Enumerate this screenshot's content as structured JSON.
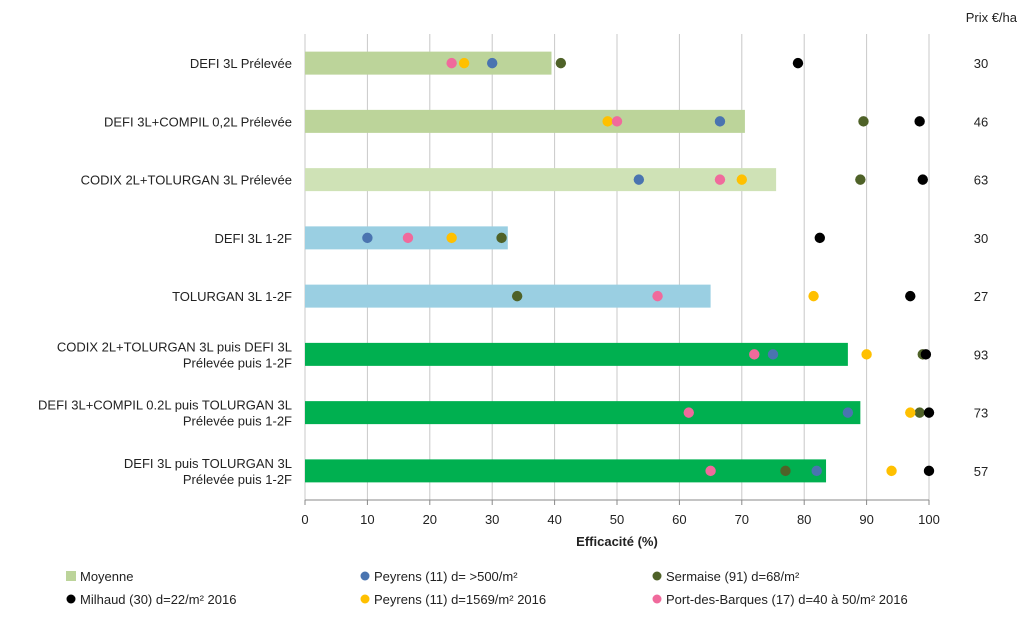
{
  "chart_data": {
    "type": "bar",
    "orientation": "horizontal",
    "xlabel": "Efficacité (%)",
    "xlim": [
      0,
      100
    ],
    "xticks": [
      0,
      10,
      20,
      30,
      40,
      50,
      60,
      70,
      80,
      90,
      100
    ],
    "grid": "vertical",
    "price_header": "Prix €/ha",
    "legend_position": "bottom",
    "categories": [
      {
        "lines": [
          "DEFI 3L   Prélevée"
        ],
        "mean": 39.5,
        "color": "#bcd49a",
        "price": "30",
        "peyrens": 30,
        "sermaise": 41,
        "milhaud": 79,
        "peyrens2016": 25.5,
        "barques": 23.5
      },
      {
        "lines": [
          "DEFI 3L+COMPIL 0,2L   Prélevée"
        ],
        "mean": 70.5,
        "color": "#bcd49a",
        "price": "46",
        "peyrens": 66.5,
        "sermaise": 89.5,
        "milhaud": 98.5,
        "peyrens2016": 48.5,
        "barques": 50
      },
      {
        "lines": [
          "CODIX 2L+TOLURGAN 3L   Prélevée"
        ],
        "mean": 75.5,
        "color": "#cfe2b6",
        "price": "63",
        "peyrens": 53.5,
        "sermaise": 89,
        "milhaud": 99,
        "peyrens2016": 70,
        "barques": 66.5
      },
      {
        "lines": [
          "DEFI 3L   1-2F"
        ],
        "mean": 32.5,
        "color": "#9acfe2",
        "price": "30",
        "peyrens": 10,
        "sermaise": 31.5,
        "milhaud": 82.5,
        "peyrens2016": 23.5,
        "barques": 16.5
      },
      {
        "lines": [
          "TOLURGAN 3L   1-2F"
        ],
        "mean": 65,
        "color": "#9acfe2",
        "price": "27",
        "peyrens": null,
        "sermaise": 34,
        "milhaud": 97,
        "peyrens2016": 81.5,
        "barques": 56.5
      },
      {
        "lines": [
          "CODIX 2L+TOLURGAN 3L puis DEFI 3L",
          "Prélevée puis 1-2F"
        ],
        "mean": 87,
        "color": "#00b050",
        "price": "93",
        "peyrens": 75,
        "sermaise": 99,
        "milhaud": 99.5,
        "peyrens2016": 90,
        "barques": 72
      },
      {
        "lines": [
          "DEFI 3L+COMPIL 0.2L puis TOLURGAN 3L",
          "Prélevée puis 1-2F"
        ],
        "mean": 89,
        "color": "#00b050",
        "price": "73",
        "peyrens": 87,
        "sermaise": 98.5,
        "milhaud": 100,
        "peyrens2016": 97,
        "barques": 61.5
      },
      {
        "lines": [
          "DEFI 3L puis TOLURGAN 3L",
          "Prélevée puis 1-2F"
        ],
        "mean": 83.5,
        "color": "#00b050",
        "price": "57",
        "peyrens": 82,
        "sermaise": 77,
        "milhaud": 100,
        "peyrens2016": 94,
        "barques": 65
      }
    ],
    "series": [
      {
        "key": "mean",
        "name": "Moyenne",
        "color": "#bcd49a",
        "marker": "square"
      },
      {
        "key": "peyrens",
        "name": "Peyrens (11) d= >500/m²",
        "color": "#4a74b0",
        "marker": "circle"
      },
      {
        "key": "sermaise",
        "name": "Sermaise (91) d=68/m²",
        "color": "#4f6228",
        "marker": "circle"
      },
      {
        "key": "milhaud",
        "name": "Milhaud (30) d=22/m² 2016",
        "color": "#000000",
        "marker": "circle"
      },
      {
        "key": "peyrens2016",
        "name": "Peyrens (11) d=1569/m² 2016",
        "color": "#ffc000",
        "marker": "circle"
      },
      {
        "key": "barques",
        "name": "Port-des-Barques (17) d=40 à 50/m² 2016",
        "color": "#f06a9c",
        "marker": "circle"
      }
    ]
  }
}
